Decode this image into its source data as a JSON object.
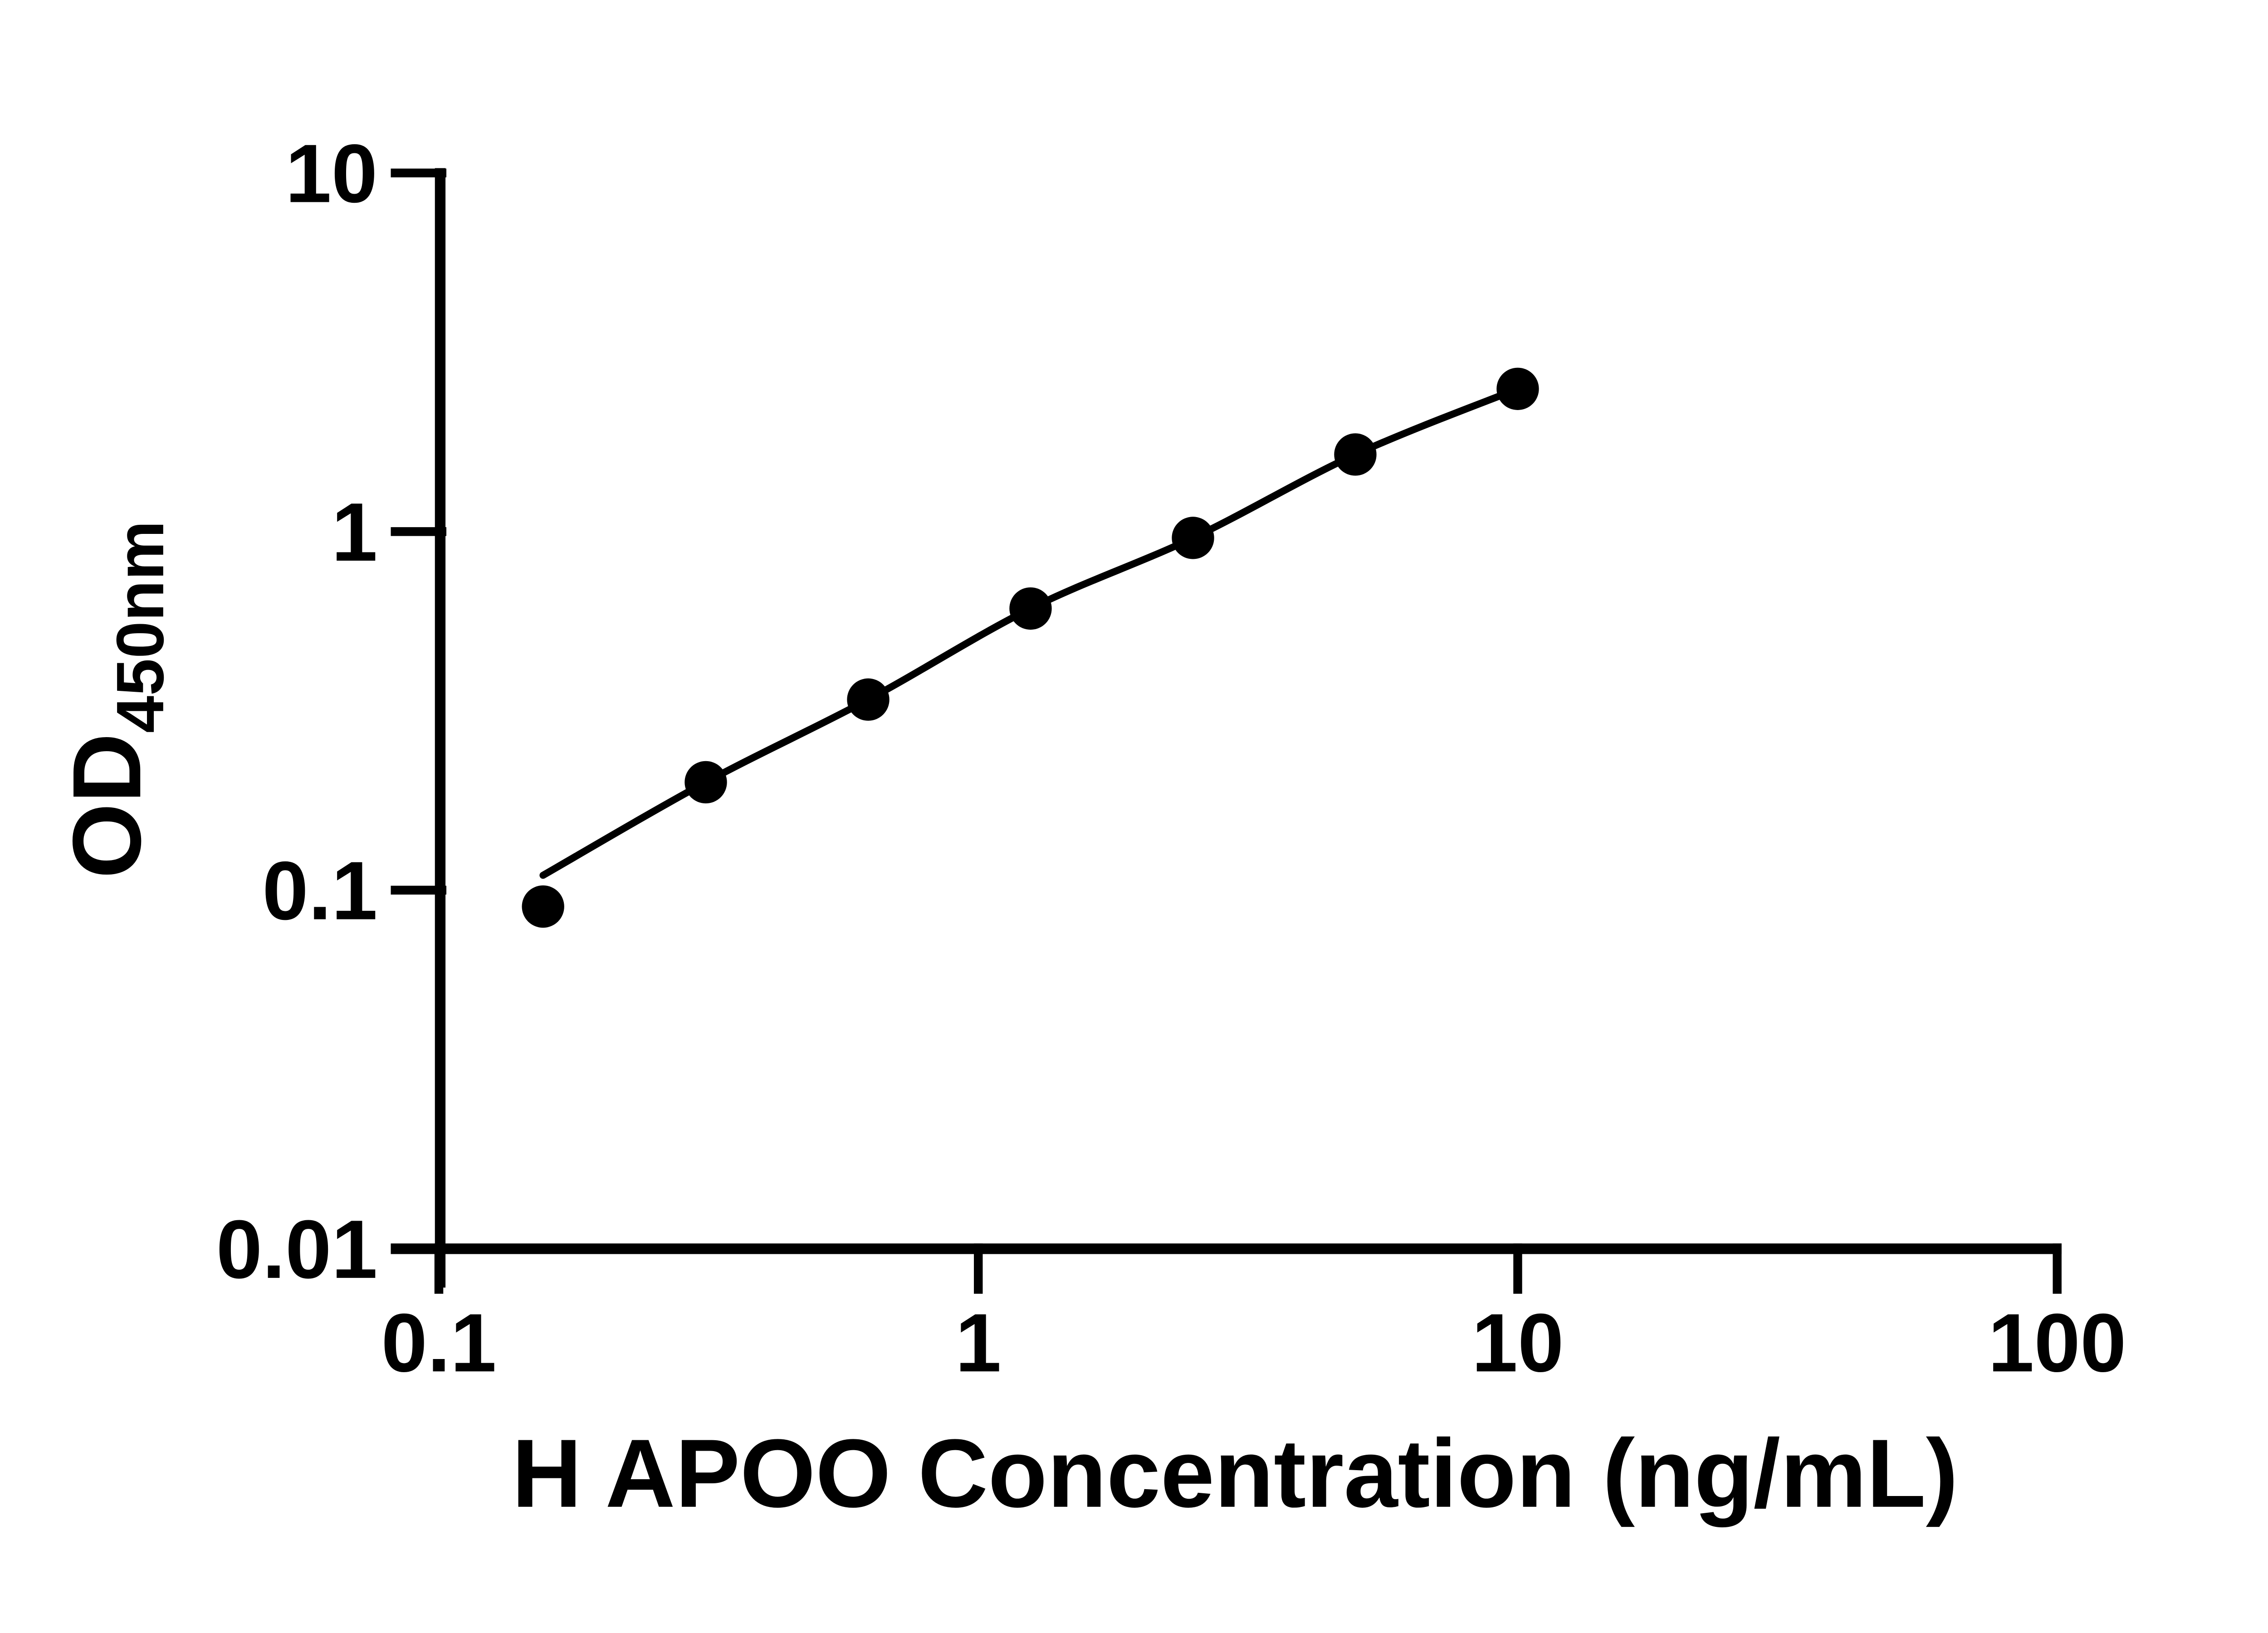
{
  "chart_data": {
    "type": "scatter",
    "scale": "log-log",
    "title": "",
    "xlabel": "H APOO Concentration (ng/mL)",
    "ylabel_main": "OD",
    "ylabel_sub": "450nm",
    "xlim": [
      0.1,
      100
    ],
    "ylim": [
      0.01,
      10
    ],
    "x_tick_labels": [
      "0.1",
      "1",
      "10",
      "100"
    ],
    "x_tick_values": [
      0.1,
      1,
      10,
      100
    ],
    "y_tick_labels": [
      "10",
      "1",
      "0.1",
      "0.01"
    ],
    "y_tick_values": [
      10,
      1,
      0.1,
      0.01
    ],
    "grid": false,
    "legend": null,
    "marker_color": "#000000",
    "line_color": "#000000",
    "background_color": "#ffffff",
    "points": [
      {
        "x": 0.156,
        "od": 0.09
      },
      {
        "x": 0.3125,
        "od": 0.2
      },
      {
        "x": 0.625,
        "od": 0.34
      },
      {
        "x": 1.25,
        "od": 0.61
      },
      {
        "x": 2.5,
        "od": 0.96
      },
      {
        "x": 5,
        "od": 1.64
      },
      {
        "x": 10,
        "od": 2.5
      }
    ],
    "fit_curve": [
      {
        "x": 0.156,
        "od": 0.11
      },
      {
        "x": 0.3125,
        "od": 0.2
      },
      {
        "x": 0.625,
        "od": 0.34
      },
      {
        "x": 1.25,
        "od": 0.61
      },
      {
        "x": 2.5,
        "od": 0.96
      },
      {
        "x": 5,
        "od": 1.64
      },
      {
        "x": 10,
        "od": 2.5
      }
    ]
  }
}
